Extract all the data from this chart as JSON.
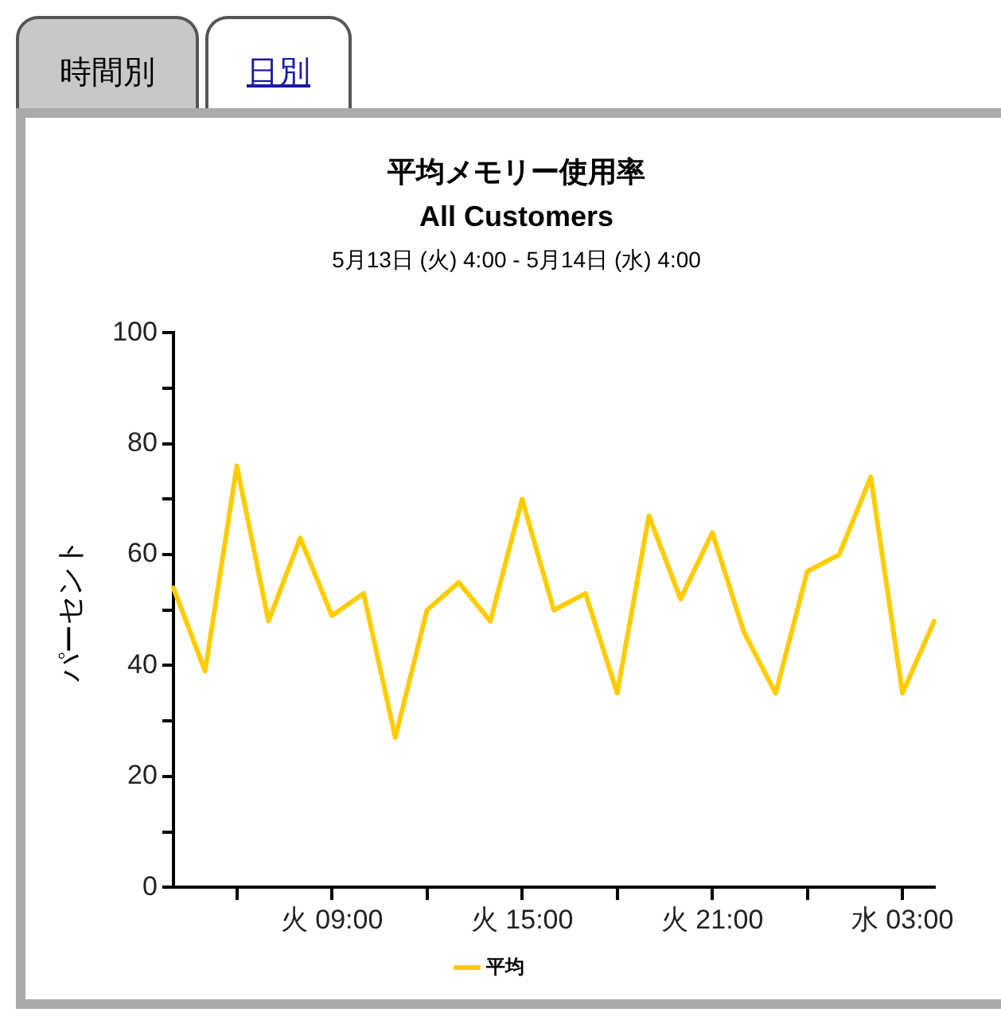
{
  "chart_data": {
    "type": "line",
    "title": "平均メモリー使用率",
    "subtitle": "All Customers",
    "annotations": [
      "時間別",
      "日別",
      "5月13日 (火) 4:00 - 5月14日 (水) 4:00"
    ],
    "ylabel": "パーセント",
    "categories": [
      null,
      null,
      null,
      null,
      null,
      "火 09:00",
      null,
      null,
      null,
      null,
      null,
      "火 15:00",
      null,
      null,
      null,
      null,
      null,
      "火 21:00",
      null,
      null,
      null,
      null,
      null,
      "水 03:00",
      null
    ],
    "series": [
      {
        "name": "平均",
        "color": "#ffcc00",
        "values": [
          54,
          39,
          76,
          48,
          63,
          49,
          53,
          27,
          50,
          55,
          48,
          70,
          50,
          53,
          35,
          67,
          52,
          64,
          46,
          35,
          57,
          60,
          74,
          35,
          48
        ]
      }
    ],
    "ylim": [
      0,
      100
    ],
    "yticks": [
      0,
      {
        "value": 10,
        "label": null
      },
      20,
      {
        "value": 30,
        "label": null
      },
      40,
      {
        "value": 50,
        "label": null
      },
      60,
      {
        "value": 70,
        "label": null
      },
      80,
      {
        "value": 90,
        "label": null
      },
      100
    ],
    "grid": false,
    "legend": "bottom",
    "marker": "none",
    "line_style": "solid"
  }
}
